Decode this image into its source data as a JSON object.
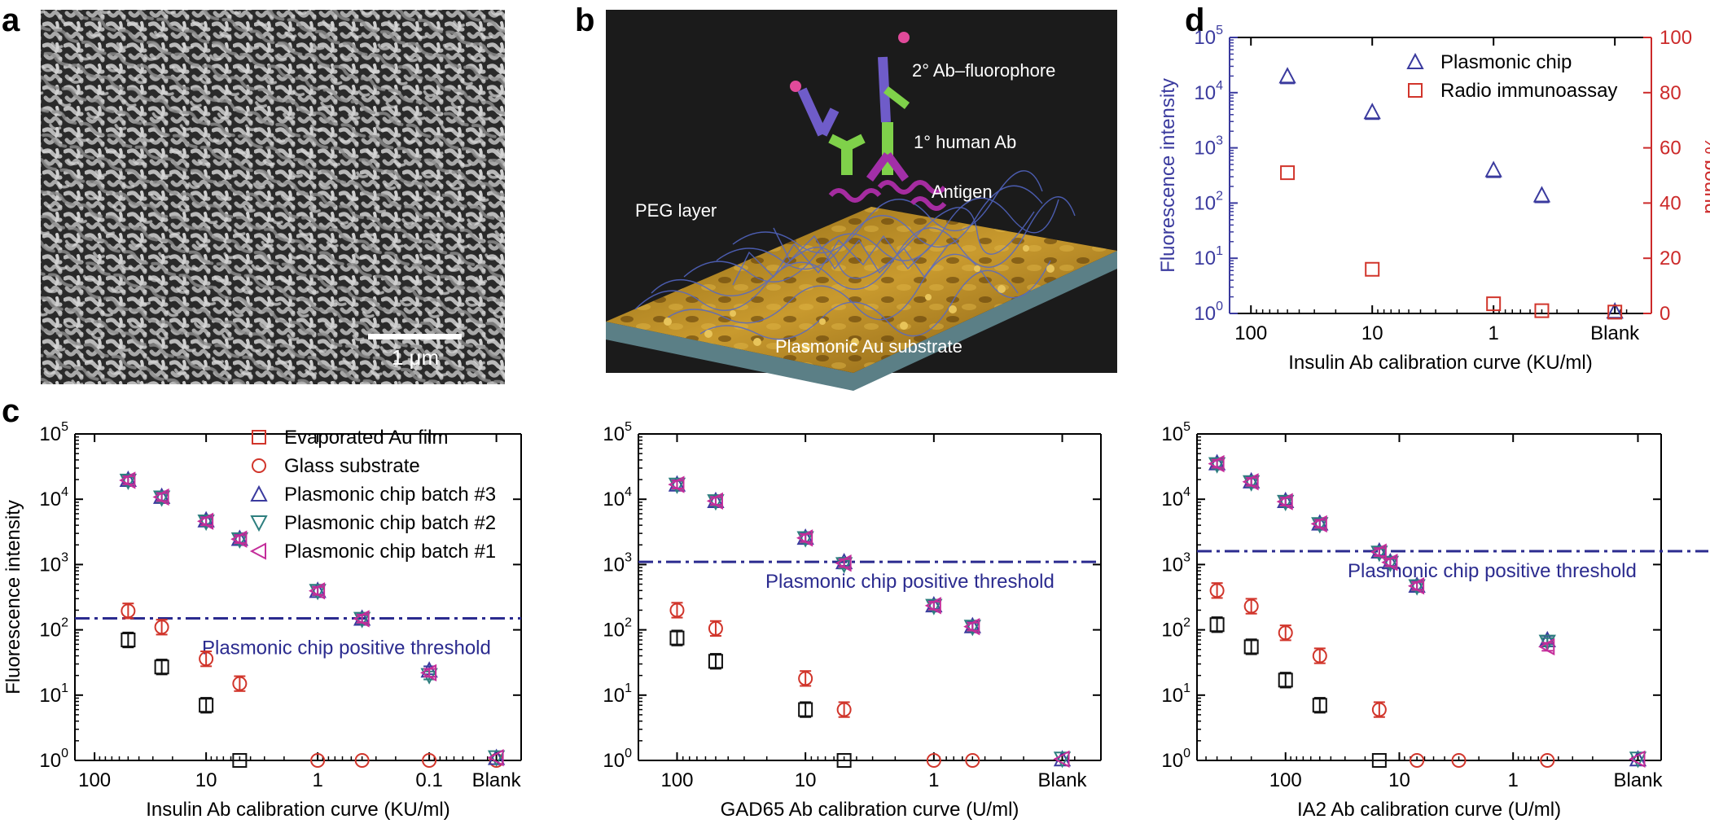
{
  "panel_letters": {
    "a": "a",
    "b": "b",
    "c": "c",
    "d": "d"
  },
  "panel_a": {
    "scale_bar_label": "1 μm"
  },
  "panel_b": {
    "labels": {
      "secondary": "2° Ab–fluorophore",
      "primary": "1° human Ab",
      "antigen": "Antigen",
      "peg": "PEG layer",
      "substrate": "Plasmonic Au substrate"
    }
  },
  "colors": {
    "evaporated": "#d1352b",
    "glass": "#d1352b",
    "batch3": "#3a3a9e",
    "batch2": "#2e7f7f",
    "batch1": "#c42d9a",
    "black": "#111111",
    "threshold": "#2b2b8f",
    "radio": "#d1352b",
    "axis_blue": "#3a3a9e",
    "axis_red": "#cc2a2a"
  },
  "chart_data": [
    {
      "id": "c1",
      "type": "scatter",
      "y_scale": "log",
      "ylim": [
        1,
        100000
      ],
      "ylabel": "Fluorescence intensity",
      "xlabel": "Insulin Ab calibration curve (KU/ml)",
      "x_ticks": [
        "100",
        "10",
        "1",
        "0.1",
        "Blank"
      ],
      "threshold": {
        "value": 150,
        "label": "Plasmonic chip positive threshold"
      },
      "legend": [
        {
          "name": "Evaporated Au film",
          "marker": "square",
          "color": "evaporated"
        },
        {
          "name": "Glass substrate",
          "marker": "circle",
          "color": "glass"
        },
        {
          "name": "Plasmonic chip batch #3",
          "marker": "tri-up",
          "color": "batch3"
        },
        {
          "name": "Plasmonic chip batch #2",
          "marker": "tri-down",
          "color": "batch2"
        },
        {
          "name": "Plasmonic chip batch #1",
          "marker": "tri-left",
          "color": "batch1"
        }
      ],
      "series": [
        {
          "name": "Evaporated Au film",
          "marker": "square",
          "color": "black",
          "x": [
            "50",
            "25",
            "10",
            "5",
            "1",
            "0.4",
            "0.1",
            "Blank"
          ],
          "y": [
            70,
            27,
            7,
            1,
            null,
            null,
            null,
            null
          ]
        },
        {
          "name": "Glass substrate",
          "marker": "circle",
          "color": "glass",
          "x": [
            "50",
            "25",
            "10",
            "5",
            "1",
            "0.4",
            "0.1",
            "Blank"
          ],
          "y": [
            195,
            110,
            36,
            15,
            1,
            1,
            1,
            1
          ]
        },
        {
          "name": "Plasmonic chip batch #3",
          "marker": "tri-up",
          "color": "batch3",
          "x": [
            "50",
            "25",
            "10",
            "5",
            "1",
            "0.4",
            "0.1",
            "Blank"
          ],
          "y": [
            20000,
            11000,
            4800,
            2500,
            400,
            150,
            24,
            1.1
          ]
        },
        {
          "name": "Plasmonic chip batch #2",
          "marker": "tri-down",
          "color": "batch2",
          "x": [
            "50",
            "25",
            "10",
            "5",
            "1",
            "0.4",
            "0.1",
            "Blank"
          ],
          "y": [
            19000,
            10500,
            4500,
            2400,
            390,
            145,
            20,
            1.1
          ]
        },
        {
          "name": "Plasmonic chip batch #1",
          "marker": "tri-left",
          "color": "batch1",
          "x": [
            "50",
            "25",
            "10",
            "5",
            "1",
            "0.4",
            "0.1",
            "Blank"
          ],
          "y": [
            19500,
            10800,
            4600,
            2450,
            395,
            148,
            22,
            1.1
          ]
        }
      ]
    },
    {
      "id": "c2",
      "type": "scatter",
      "y_scale": "log",
      "ylim": [
        1,
        100000
      ],
      "ylabel": "",
      "xlabel": "GAD65 Ab calibration curve (U/ml)",
      "x_ticks": [
        "100",
        "10",
        "1",
        "Blank"
      ],
      "threshold": {
        "value": 1100,
        "label": "Plasmonic chip positive threshold"
      },
      "series": [
        {
          "name": "Evaporated Au film",
          "marker": "square",
          "color": "black",
          "x": [
            "100",
            "50",
            "10",
            "5",
            "1",
            "0.5",
            "Blank"
          ],
          "y": [
            75,
            33,
            6,
            1,
            null,
            null,
            null
          ]
        },
        {
          "name": "Glass substrate",
          "marker": "circle",
          "color": "glass",
          "x": [
            "100",
            "50",
            "10",
            "5",
            "1",
            "0.5",
            "Blank"
          ],
          "y": [
            200,
            105,
            18,
            6,
            1,
            1,
            null
          ]
        },
        {
          "name": "Plasmonic chip batch #3",
          "marker": "tri-up",
          "color": "batch3",
          "x": [
            "100",
            "50",
            "10",
            "5",
            "1",
            "0.5",
            "Blank"
          ],
          "y": [
            17000,
            9500,
            2600,
            1100,
            240,
            115,
            1.05
          ]
        },
        {
          "name": "Plasmonic chip batch #2",
          "marker": "tri-down",
          "color": "batch2",
          "x": [
            "100",
            "50",
            "10",
            "5",
            "1",
            "0.5",
            "Blank"
          ],
          "y": [
            16500,
            9200,
            2500,
            1000,
            230,
            110,
            1.05
          ]
        },
        {
          "name": "Plasmonic chip batch #1",
          "marker": "tri-left",
          "color": "batch1",
          "x": [
            "100",
            "50",
            "10",
            "5",
            "1",
            "0.5",
            "Blank"
          ],
          "y": [
            16800,
            9400,
            2550,
            1050,
            235,
            112,
            1.05
          ]
        }
      ]
    },
    {
      "id": "c3",
      "type": "scatter",
      "y_scale": "log",
      "ylim": [
        1,
        100000
      ],
      "ylabel": "",
      "xlabel": "IA2 Ab calibration curve (U/ml)",
      "x_ticks": [
        "100",
        "10",
        "1",
        "Blank"
      ],
      "threshold": {
        "value": 1600,
        "label": "Plasmonic chip positive threshold"
      },
      "series": [
        {
          "name": "Evaporated Au film",
          "marker": "square",
          "color": "black",
          "x": [
            "400",
            "200",
            "100",
            "50",
            "15",
            "7",
            "3",
            "0.5",
            "Blank"
          ],
          "y": [
            120,
            55,
            17,
            7,
            1,
            null,
            null,
            null,
            null
          ]
        },
        {
          "name": "Glass substrate",
          "marker": "circle",
          "color": "glass",
          "x": [
            "400",
            "200",
            "100",
            "50",
            "15",
            "7",
            "3",
            "0.5",
            "Blank"
          ],
          "y": [
            400,
            230,
            90,
            40,
            6,
            1,
            1,
            1,
            null
          ]
        },
        {
          "name": "Plasmonic chip batch #3",
          "marker": "tri-up",
          "color": "batch3",
          "x": [
            "400",
            "200",
            "100",
            "50",
            "15",
            "12",
            "7",
            "0.5",
            "Blank"
          ],
          "y": [
            36000,
            19000,
            9500,
            4300,
            1600,
            1100,
            480,
            70,
            1.05
          ]
        },
        {
          "name": "Plasmonic chip batch #2",
          "marker": "tri-down",
          "color": "batch2",
          "x": [
            "400",
            "200",
            "100",
            "50",
            "15",
            "12",
            "7",
            "0.5",
            "Blank"
          ],
          "y": [
            34000,
            18000,
            9000,
            4100,
            1500,
            1050,
            460,
            65,
            1.05
          ]
        },
        {
          "name": "Plasmonic chip batch #1",
          "marker": "tri-left",
          "color": "batch1",
          "x": [
            "400",
            "200",
            "100",
            "50",
            "15",
            "12",
            "7",
            "0.5",
            "Blank"
          ],
          "y": [
            35000,
            18500,
            9200,
            4200,
            1550,
            1080,
            470,
            55,
            1.05
          ]
        }
      ]
    },
    {
      "id": "d",
      "type": "scatter",
      "y_scale": "log",
      "ylim": [
        1,
        100000
      ],
      "y2lim": [
        0,
        100
      ],
      "ylabel": "Fluorescence intensity",
      "y2label": "% bound",
      "xlabel": "Insulin Ab calibration curve (KU/ml)",
      "x_ticks": [
        "100",
        "10",
        "1",
        "Blank"
      ],
      "legend": [
        {
          "name": "Plasmonic chip",
          "marker": "tri-up",
          "color": "batch3"
        },
        {
          "name": "Radio immunoassay",
          "marker": "square",
          "color": "radio"
        }
      ],
      "series": [
        {
          "name": "Plasmonic chip",
          "axis": "left",
          "marker": "tri-up",
          "color": "batch3",
          "x": [
            "50",
            "10",
            "1",
            "0.4",
            "Blank"
          ],
          "y": [
            20000,
            4500,
            400,
            140,
            1.1
          ]
        },
        {
          "name": "Radio immunoassay",
          "axis": "right",
          "marker": "square",
          "color": "radio",
          "x": [
            "50",
            "10",
            "1",
            "0.4",
            "Blank"
          ],
          "y": [
            51,
            16,
            3.5,
            1,
            0.5
          ]
        }
      ]
    }
  ]
}
